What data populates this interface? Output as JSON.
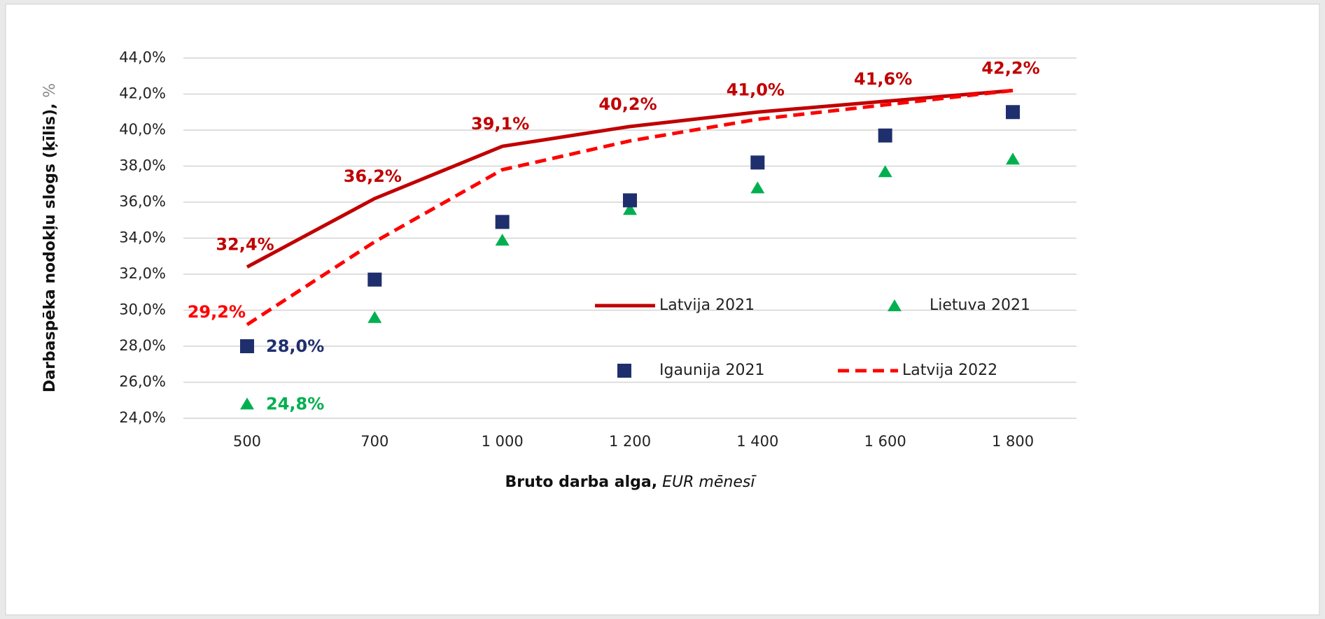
{
  "chart_data": {
    "type": "line",
    "ylabel": {
      "main": "Darbaspēka nodokļu slogs (ķīlis),",
      "unit": "%"
    },
    "xlabel": {
      "main": "Bruto darba alga,",
      "unit": "EUR mēnesī"
    },
    "categories": [
      "500",
      "700",
      "1 000",
      "1 200",
      "1 400",
      "1 600",
      "1 800"
    ],
    "ylim": [
      24,
      44
    ],
    "yticks": [
      {
        "value": 24,
        "label": "24,0%"
      },
      {
        "value": 26,
        "label": "26,0%"
      },
      {
        "value": 28,
        "label": "28,0%"
      },
      {
        "value": 30,
        "label": "30,0%"
      },
      {
        "value": 32,
        "label": "32,0%"
      },
      {
        "value": 34,
        "label": "34,0%"
      },
      {
        "value": 36,
        "label": "36,0%"
      },
      {
        "value": 38,
        "label": "38,0%"
      },
      {
        "value": 40,
        "label": "40,0%"
      },
      {
        "value": 42,
        "label": "42,0%"
      },
      {
        "value": 44,
        "label": "44,0%"
      }
    ],
    "grid": true,
    "series": [
      {
        "name": "Latvija 2021",
        "color": "#c00000",
        "line": "solid",
        "marker": "none",
        "values": [
          32.4,
          36.2,
          39.1,
          40.2,
          41.0,
          41.6,
          42.2
        ],
        "value_labels": [
          "32,4%",
          "36,2%",
          "39,1%",
          "40,2%",
          "41,0%",
          "41,6%",
          "42,2%"
        ]
      },
      {
        "name": "Lietuva 2021",
        "color": "#00b050",
        "line": "none",
        "marker": "triangle",
        "values": [
          24.8,
          29.6,
          33.9,
          35.6,
          36.8,
          37.7,
          38.4
        ],
        "value_labels": [
          "24,8%",
          null,
          null,
          null,
          null,
          null,
          null
        ]
      },
      {
        "name": "Igaunija 2021",
        "color": "#1f2f6e",
        "line": "none",
        "marker": "square",
        "values": [
          28.0,
          31.7,
          34.9,
          36.1,
          38.2,
          39.7,
          41.0
        ],
        "value_labels": [
          "28,0%",
          null,
          null,
          null,
          null,
          null,
          null
        ]
      },
      {
        "name": "Latvija 2022",
        "color": "#ff0000",
        "line": "dashed",
        "marker": "none",
        "values": [
          29.2,
          33.8,
          37.8,
          39.4,
          40.6,
          41.4,
          42.2
        ],
        "value_labels": [
          "29,2%",
          null,
          null,
          null,
          null,
          null,
          null
        ]
      }
    ]
  }
}
